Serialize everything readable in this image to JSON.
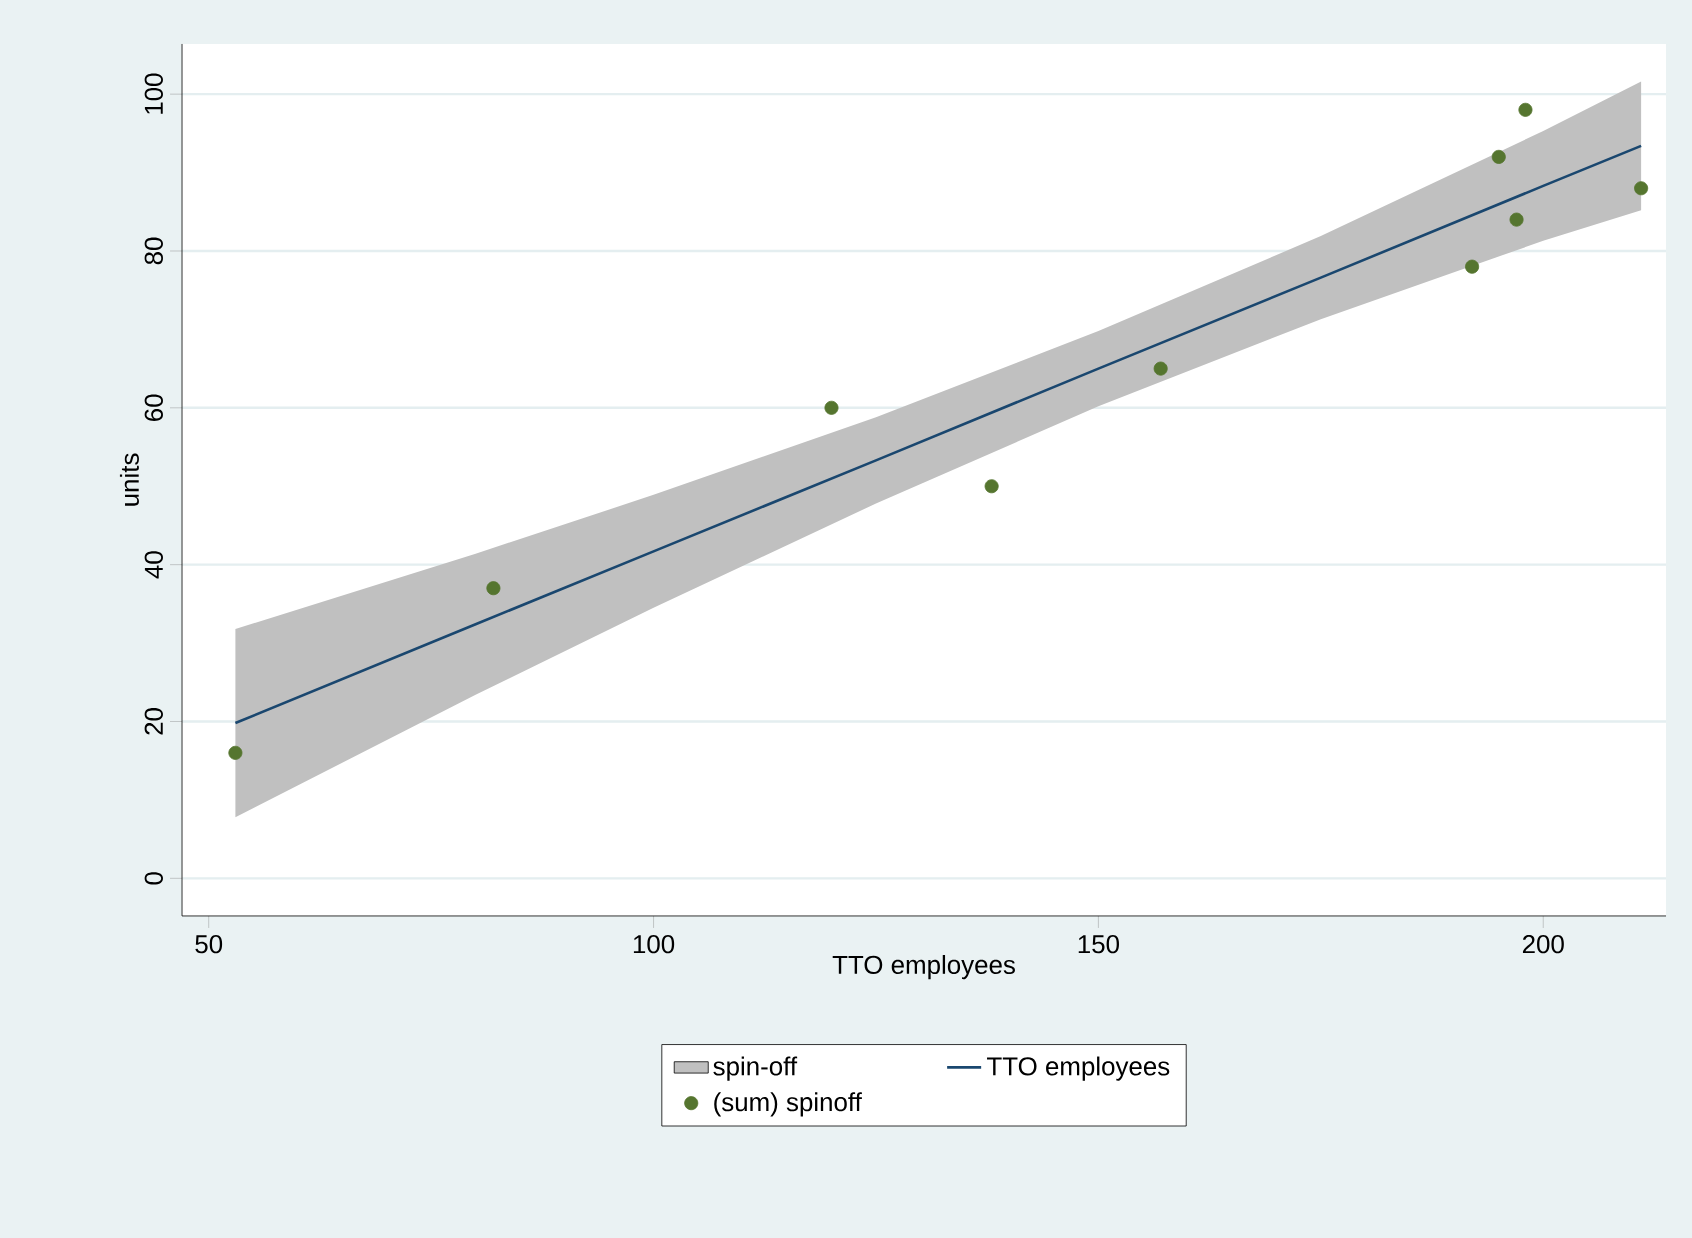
{
  "chart_data": {
    "type": "scatter",
    "xlabel": "TTO employees",
    "ylabel": "units",
    "xlim": [
      47,
      213.8
    ],
    "ylim": [
      -4.8,
      106.4
    ],
    "xticks": [
      50,
      100,
      150,
      200
    ],
    "yticks": [
      0,
      20,
      40,
      60,
      80,
      100
    ],
    "grid": "y",
    "legend": "bottom",
    "series": [
      {
        "type": "area",
        "name": "spin-off",
        "color": "#c0c0c0",
        "x": [
          53,
          80,
          100,
          125,
          150,
          175,
          200,
          211
        ],
        "values": [
          null,
          null,
          null,
          null,
          null,
          null,
          null,
          null
        ],
        "lower": [
          7.8,
          23.4,
          34.5,
          47.8,
          60.2,
          71.3,
          81.3,
          85.2
        ],
        "upper": [
          31.8,
          41.4,
          48.9,
          58.8,
          69.8,
          81.9,
          95.3,
          101.6
        ]
      },
      {
        "type": "line",
        "name": "TTO employees",
        "color": "#1a476f",
        "line_style": "solid",
        "x": [
          53,
          80,
          100,
          125,
          150,
          175,
          200,
          211
        ],
        "values": [
          19.8,
          32.4,
          41.7,
          53.3,
          65.0,
          76.6,
          88.3,
          93.4
        ]
      },
      {
        "name": "(sum) spinoff",
        "color": "#55752f",
        "marker": "circle",
        "x": [
          53,
          82,
          120,
          138,
          157,
          192,
          195,
          197,
          198,
          211
        ],
        "values": [
          16,
          37,
          60,
          50,
          65,
          78,
          92,
          84,
          98,
          88
        ]
      }
    ]
  }
}
